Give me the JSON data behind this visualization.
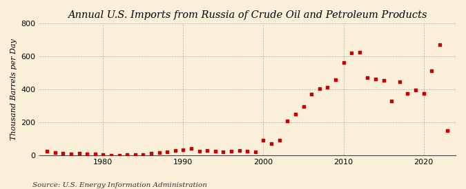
{
  "title": "Annual U.S. Imports from Russia of Crude Oil and Petroleum Products",
  "ylabel": "Thousand Barrels per Day",
  "source": "Source: U.S. Energy Information Administration",
  "background_color": "#faefd8",
  "marker_color": "#cc0000",
  "years": [
    1973,
    1974,
    1975,
    1976,
    1977,
    1978,
    1979,
    1980,
    1981,
    1982,
    1983,
    1984,
    1985,
    1986,
    1987,
    1988,
    1989,
    1990,
    1991,
    1992,
    1993,
    1994,
    1995,
    1996,
    1997,
    1998,
    1999,
    2000,
    2001,
    2002,
    2003,
    2004,
    2005,
    2006,
    2007,
    2008,
    2009,
    2010,
    2011,
    2012,
    2013,
    2014,
    2015,
    2016,
    2017,
    2018,
    2019,
    2020,
    2021,
    2022,
    2023
  ],
  "values": [
    25,
    15,
    10,
    8,
    10,
    8,
    8,
    2,
    1,
    1,
    2,
    5,
    5,
    10,
    15,
    20,
    30,
    35,
    40,
    25,
    30,
    25,
    20,
    25,
    30,
    25,
    20,
    90,
    70,
    90,
    210,
    250,
    295,
    370,
    405,
    415,
    460,
    565,
    620,
    625,
    470,
    465,
    455,
    330,
    445,
    375,
    395,
    375,
    515,
    670,
    150
  ],
  "ylim": [
    0,
    800
  ],
  "yticks": [
    0,
    200,
    400,
    600,
    800
  ],
  "xlim": [
    1972,
    2024
  ],
  "xticks": [
    1980,
    1990,
    2000,
    2010,
    2020
  ],
  "title_fontsize": 10.5,
  "label_fontsize": 8,
  "tick_fontsize": 8,
  "source_fontsize": 7.5
}
